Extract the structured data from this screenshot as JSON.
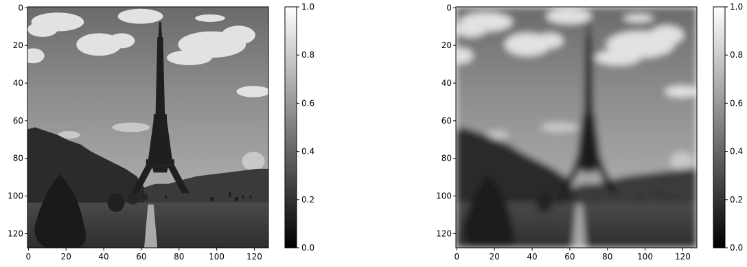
{
  "figure": {
    "panels": [
      {
        "id": "original",
        "blur": 0
      },
      {
        "id": "blurred",
        "blur": 1.8
      }
    ]
  },
  "chart_data": [
    {
      "type": "heatmap",
      "image_content": "grayscale photograph: Eiffel Tower with trees and path, sky with clouds",
      "colormap": "gray",
      "x_ticks": [
        "0",
        "20",
        "40",
        "60",
        "80",
        "100",
        "120"
      ],
      "y_ticks": [
        "0",
        "20",
        "40",
        "60",
        "80",
        "100",
        "120"
      ],
      "xlim": [
        -0.5,
        127.5
      ],
      "ylim": [
        127.5,
        -0.5
      ],
      "colorbar": {
        "ticks": [
          "0.0",
          "0.2",
          "0.4",
          "0.6",
          "0.8",
          "1.0"
        ],
        "range": [
          0,
          1
        ]
      },
      "title": "",
      "xlabel": "",
      "ylabel": ""
    },
    {
      "type": "heatmap",
      "image_content": "same photograph, gaussian-blurred",
      "colormap": "gray",
      "x_ticks": [
        "0",
        "20",
        "40",
        "60",
        "80",
        "100",
        "120"
      ],
      "y_ticks": [
        "0",
        "20",
        "40",
        "60",
        "80",
        "100",
        "120"
      ],
      "xlim": [
        -0.5,
        127.5
      ],
      "ylim": [
        127.5,
        -0.5
      ],
      "colorbar": {
        "ticks": [
          "0.0",
          "0.2",
          "0.4",
          "0.6",
          "0.8",
          "1.0"
        ],
        "range": [
          0,
          1
        ]
      },
      "title": "",
      "xlabel": "",
      "ylabel": ""
    }
  ]
}
